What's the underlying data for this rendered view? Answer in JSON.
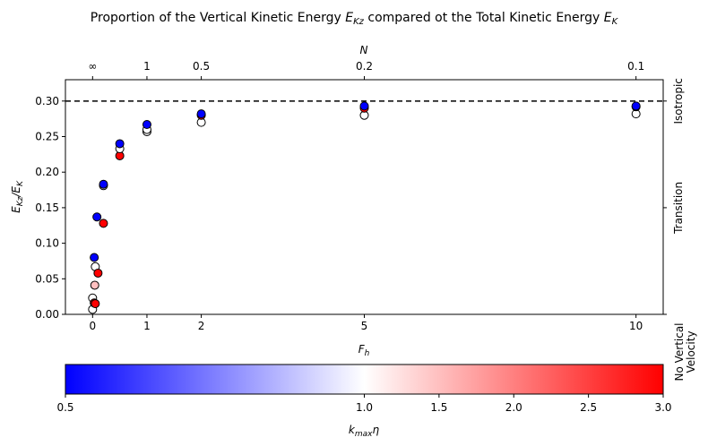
{
  "chart_data": {
    "type": "scatter",
    "title": "Proportion of the Vertical Kinetic Energy E_Kz compared ot the Total Kinetic Energy E_K",
    "title_parts": {
      "before": "Proportion of the Vertical Kinetic Energy ",
      "sym1": "E",
      "sub1": "Kz",
      "middle": " compared ot the Total Kinetic Energy ",
      "sym2": "E",
      "sub2": "K"
    },
    "xlabel": {
      "main": "F",
      "sub": "h"
    },
    "ylabel": {
      "num": "E",
      "num_sub": "Kz",
      "den": "E",
      "den_sub": "K"
    },
    "top_axis_label": "N",
    "xlim": [
      -0.5,
      10.5
    ],
    "ylim": [
      0.0,
      0.33
    ],
    "grid": false,
    "x_ticks": [
      {
        "value": 0,
        "label": "0"
      },
      {
        "value": 1,
        "label": "1"
      },
      {
        "value": 2,
        "label": "2"
      },
      {
        "value": 5,
        "label": "5"
      },
      {
        "value": 10,
        "label": "10"
      }
    ],
    "y_ticks": [
      {
        "value": 0.0,
        "label": "0.00"
      },
      {
        "value": 0.05,
        "label": "0.05"
      },
      {
        "value": 0.1,
        "label": "0.10"
      },
      {
        "value": 0.15,
        "label": "0.15"
      },
      {
        "value": 0.2,
        "label": "0.20"
      },
      {
        "value": 0.25,
        "label": "0.25"
      },
      {
        "value": 0.3,
        "label": "0.30"
      }
    ],
    "top_ticks": [
      {
        "value": 0,
        "label": "∞"
      },
      {
        "value": 1,
        "label": "1"
      },
      {
        "value": 2,
        "label": "0.5"
      },
      {
        "value": 5,
        "label": "0.2"
      },
      {
        "value": 10,
        "label": "0.1"
      }
    ],
    "isotropic_line": {
      "y": 0.3,
      "style": "dashed",
      "color": "#000000"
    },
    "right_labels": [
      {
        "y": 0.3,
        "text": "Isotropic"
      },
      {
        "y": 0.15,
        "text": "Transition"
      },
      {
        "y": 0.0,
        "text": "No Vertical Velocity"
      }
    ],
    "points": [
      {
        "x": 0.0,
        "y": 0.007,
        "k": 1.0
      },
      {
        "x": 0.0,
        "y": 0.023,
        "k": 1.0
      },
      {
        "x": 0.03,
        "y": 0.016,
        "k": 3.0
      },
      {
        "x": 0.05,
        "y": 0.015,
        "k": 3.0
      },
      {
        "x": 0.04,
        "y": 0.041,
        "k": 1.5
      },
      {
        "x": 0.05,
        "y": 0.067,
        "k": 1.0
      },
      {
        "x": 0.03,
        "y": 0.08,
        "k": 0.5
      },
      {
        "x": 0.1,
        "y": 0.058,
        "k": 3.0
      },
      {
        "x": 0.08,
        "y": 0.137,
        "k": 0.5
      },
      {
        "x": 0.2,
        "y": 0.128,
        "k": 3.0
      },
      {
        "x": 0.2,
        "y": 0.181,
        "k": 1.0
      },
      {
        "x": 0.2,
        "y": 0.183,
        "k": 0.5
      },
      {
        "x": 0.5,
        "y": 0.223,
        "k": 3.0
      },
      {
        "x": 0.5,
        "y": 0.233,
        "k": 1.0
      },
      {
        "x": 0.5,
        "y": 0.24,
        "k": 0.5
      },
      {
        "x": 1.0,
        "y": 0.257,
        "k": 1.0
      },
      {
        "x": 1.0,
        "y": 0.26,
        "k": 1.0
      },
      {
        "x": 1.0,
        "y": 0.267,
        "k": 0.5
      },
      {
        "x": 2.0,
        "y": 0.27,
        "k": 1.0
      },
      {
        "x": 2.0,
        "y": 0.28,
        "k": 3.0
      },
      {
        "x": 2.0,
        "y": 0.282,
        "k": 0.5
      },
      {
        "x": 5.0,
        "y": 0.28,
        "k": 1.0
      },
      {
        "x": 5.0,
        "y": 0.29,
        "k": 3.0
      },
      {
        "x": 5.0,
        "y": 0.293,
        "k": 0.5
      },
      {
        "x": 10.0,
        "y": 0.282,
        "k": 1.0
      },
      {
        "x": 10.0,
        "y": 0.292,
        "k": 3.0
      },
      {
        "x": 10.0,
        "y": 0.293,
        "k": 0.5
      }
    ],
    "colorbar": {
      "label": {
        "main": "k",
        "sub": "max",
        "tail": "η"
      },
      "vmin": 0.5,
      "vcenter": 1.0,
      "vmax": 3.0,
      "colors": {
        "low": "#0000ff",
        "mid": "#ffffff",
        "high": "#ff0000"
      },
      "ticks": [
        {
          "value": 0.5,
          "label": "0.5"
        },
        {
          "value": 1.0,
          "label": "1.0"
        },
        {
          "value": 1.5,
          "label": "1.5"
        },
        {
          "value": 2.0,
          "label": "2.0"
        },
        {
          "value": 2.5,
          "label": "2.5"
        },
        {
          "value": 3.0,
          "label": "3.0"
        }
      ]
    }
  }
}
